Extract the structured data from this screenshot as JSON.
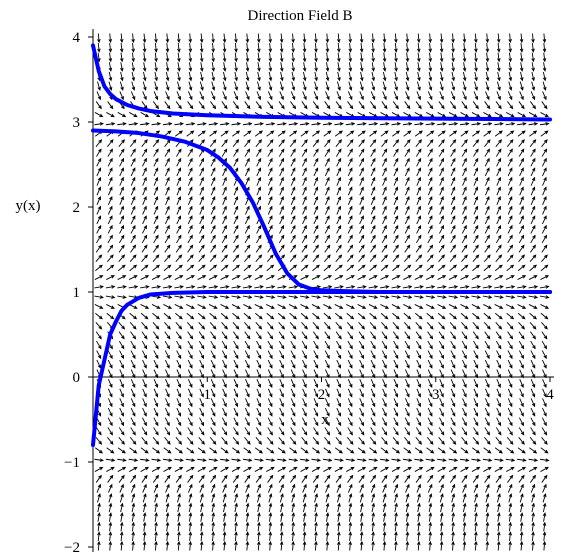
{
  "chart_data": {
    "type": "line",
    "title": "Direction Field B",
    "xlabel": "x",
    "ylabel": "y(x)",
    "xlim": [
      0,
      4
    ],
    "ylim": [
      -2,
      4
    ],
    "x_ticks": [
      {
        "value": 1,
        "label": "1"
      },
      {
        "value": 2,
        "label": "2"
      },
      {
        "value": 3,
        "label": "3"
      },
      {
        "value": 4,
        "label": "4"
      }
    ],
    "y_ticks": [
      {
        "value": -2,
        "label": "−2"
      },
      {
        "value": -1,
        "label": "−1"
      },
      {
        "value": 0,
        "label": "0"
      },
      {
        "value": 1,
        "label": "1"
      },
      {
        "value": 2,
        "label": "2"
      },
      {
        "value": 3,
        "label": "3"
      },
      {
        "value": 4,
        "label": "4"
      }
    ],
    "field": {
      "equilibria": [
        -1,
        1,
        3
      ],
      "x_range": [
        0,
        4
      ],
      "y_range": [
        -2,
        4
      ],
      "arrow_color": "#000000"
    },
    "series": [
      {
        "color": "#0000ff",
        "x": [
          0.0,
          0.05,
          0.1,
          0.15,
          0.2,
          0.3,
          0.4,
          0.5,
          0.7,
          1.0,
          1.5,
          2.0,
          3.0,
          4.0
        ],
        "y": [
          3.9,
          3.6,
          3.42,
          3.33,
          3.27,
          3.2,
          3.16,
          3.13,
          3.1,
          3.08,
          3.06,
          3.05,
          3.04,
          3.03
        ]
      },
      {
        "color": "#0000ff",
        "x": [
          0.0,
          0.2,
          0.4,
          0.6,
          0.8,
          1.0,
          1.1,
          1.2,
          1.3,
          1.4,
          1.5,
          1.6,
          1.7,
          1.8,
          1.9,
          2.0,
          2.2,
          2.5,
          3.0,
          4.0
        ],
        "y": [
          2.9,
          2.89,
          2.87,
          2.83,
          2.77,
          2.67,
          2.58,
          2.46,
          2.28,
          2.05,
          1.76,
          1.45,
          1.22,
          1.09,
          1.04,
          1.02,
          1.01,
          1.0,
          1.0,
          1.0
        ]
      },
      {
        "color": "#0000ff",
        "x": [
          0.0,
          0.05,
          0.1,
          0.15,
          0.2,
          0.25,
          0.3,
          0.4,
          0.5,
          0.7,
          1.0,
          1.5,
          2.0,
          3.0,
          4.0
        ],
        "y": [
          -0.8,
          -0.1,
          0.2,
          0.5,
          0.65,
          0.78,
          0.85,
          0.93,
          0.97,
          0.99,
          1.0,
          1.0,
          1.0,
          1.0,
          1.0
        ]
      }
    ]
  }
}
